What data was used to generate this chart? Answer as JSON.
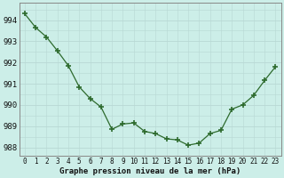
{
  "x": [
    0,
    1,
    2,
    3,
    4,
    5,
    6,
    7,
    8,
    9,
    10,
    11,
    12,
    13,
    14,
    15,
    16,
    17,
    18,
    19,
    20,
    21,
    22,
    23
  ],
  "y": [
    994.3,
    993.65,
    993.2,
    992.55,
    991.85,
    990.85,
    990.3,
    989.9,
    988.85,
    989.1,
    989.15,
    988.75,
    988.65,
    988.4,
    988.35,
    988.1,
    988.2,
    988.65,
    988.8,
    989.8,
    990.0,
    990.45,
    991.15,
    991.8
  ],
  "line_color": "#2d6a2d",
  "marker_color": "#2d6a2d",
  "bg_color": "#cceee8",
  "grid_color": "#b8d8d4",
  "xlabel": "Graphe pression niveau de la mer (hPa)",
  "ylim_min": 987.6,
  "ylim_max": 994.8,
  "yticks": [
    988,
    989,
    990,
    991,
    992,
    993,
    994
  ],
  "xtick_labels": [
    "0",
    "1",
    "2",
    "3",
    "4",
    "5",
    "6",
    "7",
    "8",
    "9",
    "10",
    "11",
    "12",
    "13",
    "14",
    "15",
    "16",
    "17",
    "18",
    "19",
    "20",
    "21",
    "22",
    "23"
  ]
}
